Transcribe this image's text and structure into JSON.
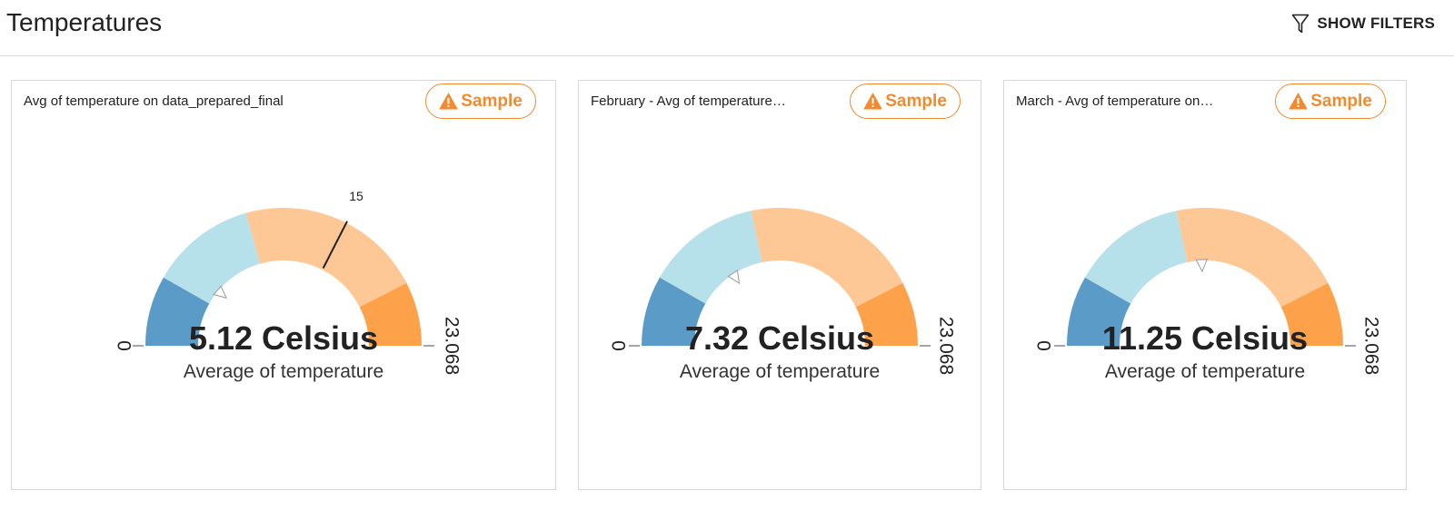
{
  "page": {
    "title": "Temperatures",
    "filters_label": "SHOW FILTERS",
    "funnel_icon": "funnel-icon"
  },
  "badge": {
    "label": "Sample",
    "color": "#f28a2e",
    "icon": "warning-icon"
  },
  "colors": {
    "band_dark_blue": "#5a9bc8",
    "band_light_blue": "#b6e0ea",
    "band_light_orange": "#fec896",
    "band_orange": "#fda24b"
  },
  "chart_data": [
    {
      "type": "gauge",
      "title": "Avg of temperature on data_prepared_final",
      "value": 5.12,
      "value_label": "5.12 Celsius",
      "unit": "Celsius",
      "subtitle": "Average of temperature",
      "min": 0,
      "max": 23.068,
      "min_label": "0",
      "max_label": "23.068",
      "bands": [
        {
          "from": 0,
          "to": 3.8,
          "color": "#5a9bc8"
        },
        {
          "from": 3.8,
          "to": 9.5,
          "color": "#b6e0ea"
        },
        {
          "from": 9.5,
          "to": 19.6,
          "color": "#fec896"
        },
        {
          "from": 19.6,
          "to": 23.068,
          "color": "#fda24b"
        }
      ],
      "target": 15,
      "target_label": "15"
    },
    {
      "type": "gauge",
      "title": "February - Avg of temperature…",
      "value": 7.32,
      "value_label": "7.32 Celsius",
      "unit": "Celsius",
      "subtitle": "Average of temperature",
      "min": 0,
      "max": 23.068,
      "min_label": "0",
      "max_label": "23.068",
      "bands": [
        {
          "from": 0,
          "to": 3.8,
          "color": "#5a9bc8"
        },
        {
          "from": 3.8,
          "to": 10.0,
          "color": "#b6e0ea"
        },
        {
          "from": 10.0,
          "to": 19.6,
          "color": "#fec896"
        },
        {
          "from": 19.6,
          "to": 23.068,
          "color": "#fda24b"
        }
      ]
    },
    {
      "type": "gauge",
      "title": "March - Avg of temperature on…",
      "value": 11.25,
      "value_label": "11.25 Celsius",
      "unit": "Celsius",
      "subtitle": "Average of temperature",
      "min": 0,
      "max": 23.068,
      "min_label": "0",
      "max_label": "23.068",
      "bands": [
        {
          "from": 0,
          "to": 3.8,
          "color": "#5a9bc8"
        },
        {
          "from": 3.8,
          "to": 10.0,
          "color": "#b6e0ea"
        },
        {
          "from": 10.0,
          "to": 19.6,
          "color": "#fec896"
        },
        {
          "from": 19.6,
          "to": 23.068,
          "color": "#fda24b"
        }
      ]
    }
  ]
}
